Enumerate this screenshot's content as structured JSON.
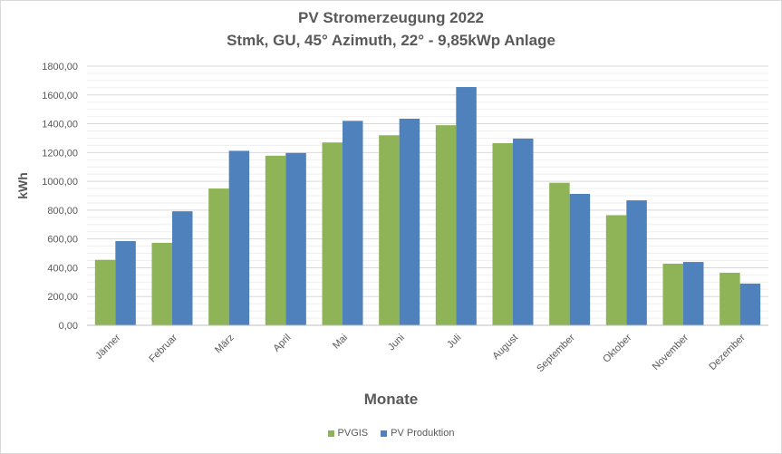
{
  "chart_data": {
    "type": "bar",
    "title": "PV Stromerzeugung 2022",
    "subtitle": "Stmk, GU, 45° Azimuth, 22° - 9,85kWp Anlage",
    "xlabel": "Monate",
    "ylabel": "kWh",
    "categories": [
      "Jänner",
      "Februar",
      "März",
      "April",
      "Mai",
      "Juni",
      "Juli",
      "August",
      "September",
      "Oktober",
      "November",
      "Dezember"
    ],
    "series": [
      {
        "name": "PVGIS",
        "color": "#8fb458",
        "values": [
          455,
          573,
          950,
          1178,
          1270,
          1320,
          1390,
          1265,
          990,
          765,
          428,
          365
        ]
      },
      {
        "name": "PV Produktion",
        "color": "#4f81bd",
        "values": [
          585,
          792,
          1212,
          1197,
          1420,
          1435,
          1655,
          1297,
          913,
          868,
          440,
          290
        ]
      }
    ],
    "ylim": [
      0,
      1800
    ],
    "ytick_labels": [
      "0,00",
      "200,00",
      "400,00",
      "600,00",
      "800,00",
      "1000,00",
      "1200,00",
      "1400,00",
      "1600,00",
      "1800,00"
    ],
    "grid": true,
    "legend_position": "bottom"
  }
}
